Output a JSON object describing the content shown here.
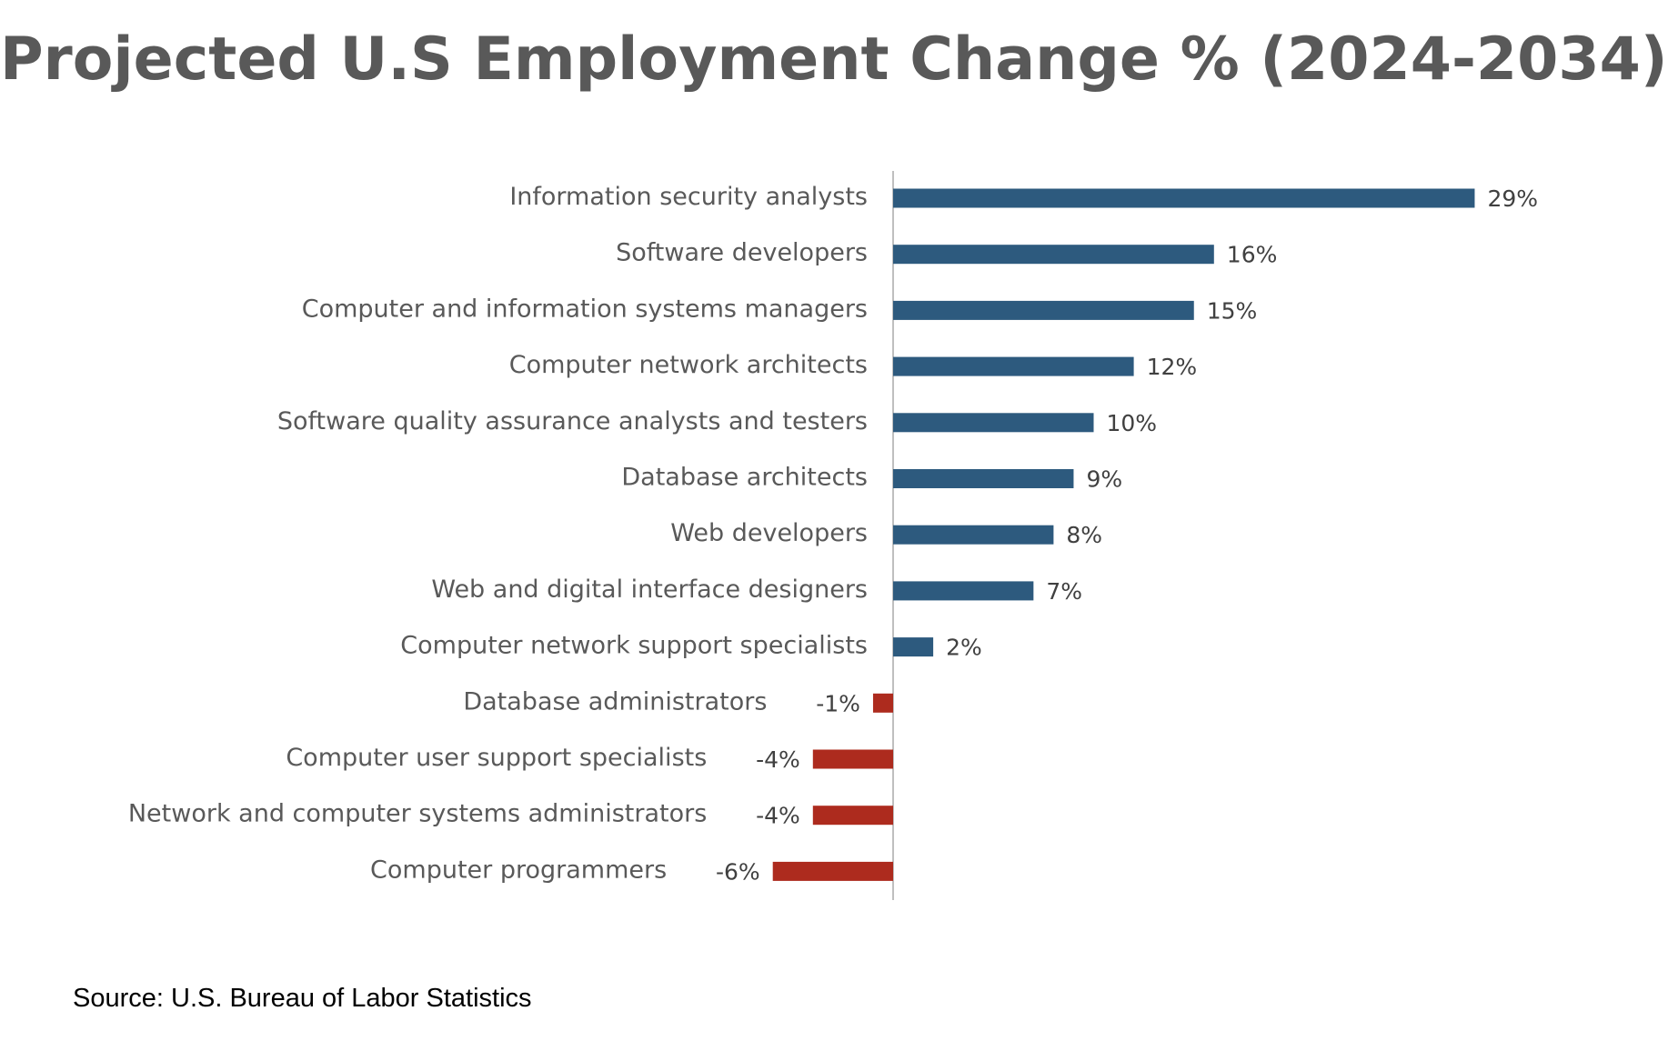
{
  "chart_data": {
    "type": "bar",
    "orientation": "horizontal",
    "title": "Projected U.S Employment Change % (2024-2034)",
    "xlabel": "",
    "ylabel": "",
    "categories": [
      "Information security analysts",
      "Software developers",
      "Computer and information systems managers",
      "Computer network architects",
      "Software quality assurance analysts and testers",
      "Database architects",
      "Web developers",
      "Web and digital interface designers",
      "Computer network support specialists",
      "Database administrators",
      "Computer user support specialists",
      "Network and computer systems administrators",
      "Computer programmers"
    ],
    "values": [
      29,
      16,
      15,
      12,
      10,
      9,
      8,
      7,
      2,
      -1,
      -4,
      -4,
      -6
    ],
    "data_labels": [
      "29%",
      "16%",
      "15%",
      "12%",
      "10%",
      "9%",
      "8%",
      "7%",
      "2%",
      "-1%",
      "-4%",
      "-4%",
      "-6%"
    ],
    "value_suffix": "%",
    "xlim": [
      -6,
      29
    ],
    "grid": false,
    "legend": "none",
    "colors": {
      "positive": "#2d5a7e",
      "negative": "#ad2b1e",
      "axis": "#bfbfbf",
      "category_text": "#595959",
      "label_text": "#404040"
    }
  },
  "source": "Source: U.S. Bureau of Labor Statistics"
}
